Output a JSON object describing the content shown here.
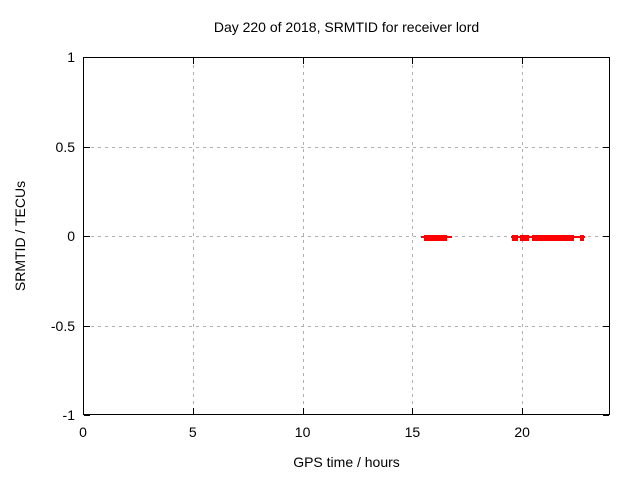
{
  "colors": {
    "background": "#ffffff",
    "axis": "#000000",
    "grid": "#b0b0b0",
    "series": "#ff0000"
  },
  "chart_data": {
    "type": "scatter",
    "title": "Day 220 of 2018, SRMTID for receiver lord",
    "xlabel": "GPS time / hours",
    "ylabel": "SRMTID / TECUs",
    "xlim": [
      0,
      24
    ],
    "ylim": [
      -1,
      1
    ],
    "xticks": [
      0,
      5,
      10,
      15,
      20
    ],
    "yticks": [
      1,
      0.5,
      0,
      -0.5,
      -1
    ],
    "grid": true,
    "legend": "none",
    "series": [
      {
        "name": "SRMTID",
        "color": "#ff0000",
        "y_value": 0,
        "dense_intervals_hours": [
          [
            15.55,
            16.6
          ],
          [
            19.55,
            19.8
          ],
          [
            19.9,
            20.3
          ],
          [
            20.45,
            22.35
          ],
          [
            22.65,
            22.8
          ]
        ],
        "sparse_intervals_hours": [
          [
            15.4,
            16.8
          ],
          [
            19.5,
            22.85
          ]
        ]
      }
    ]
  }
}
